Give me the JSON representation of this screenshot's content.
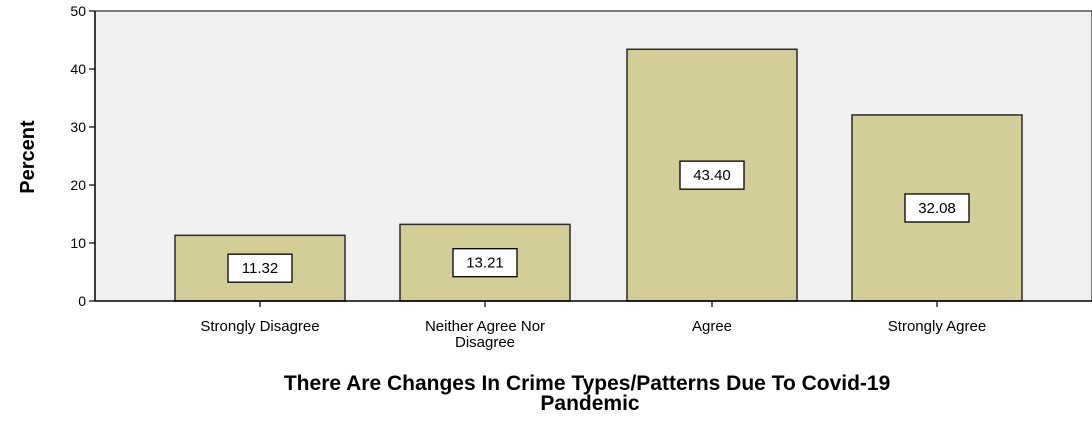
{
  "chart_data": {
    "type": "bar",
    "categories": [
      "Strongly Disagree",
      "Neither Agree Nor Disagree",
      "Agree",
      "Strongly Agree"
    ],
    "category_lines": [
      [
        "Strongly Disagree"
      ],
      [
        "Neither Agree Nor",
        "Disagree"
      ],
      [
        "Agree"
      ],
      [
        "Strongly Agree"
      ]
    ],
    "values": [
      11.32,
      13.21,
      43.4,
      32.08
    ],
    "data_labels": [
      "11.32",
      "13.21",
      "43.40",
      "32.08"
    ],
    "title": "",
    "xlabel": "There Are Changes In Crime Types/Patterns Due To Covid-19 Pandemic",
    "xlabel_lines": [
      "There Are Changes In Crime Types/Patterns Due To Covid-19",
      "Pandemic"
    ],
    "ylabel": "Percent",
    "ylim": [
      0,
      50
    ],
    "yticks": [
      0,
      10,
      20,
      30,
      40,
      50
    ],
    "ytick_labels": [
      "0",
      "10",
      "20",
      "30",
      "40",
      "50"
    ],
    "grid": false,
    "legend": "none",
    "colors": {
      "plot_background": "#f0f0f0",
      "bar_fill": "#d3ce97",
      "bar_stroke": "#2b2b2b",
      "axis": "#000000",
      "label_box_fill": "#ffffff",
      "label_box_stroke": "#000000"
    }
  }
}
